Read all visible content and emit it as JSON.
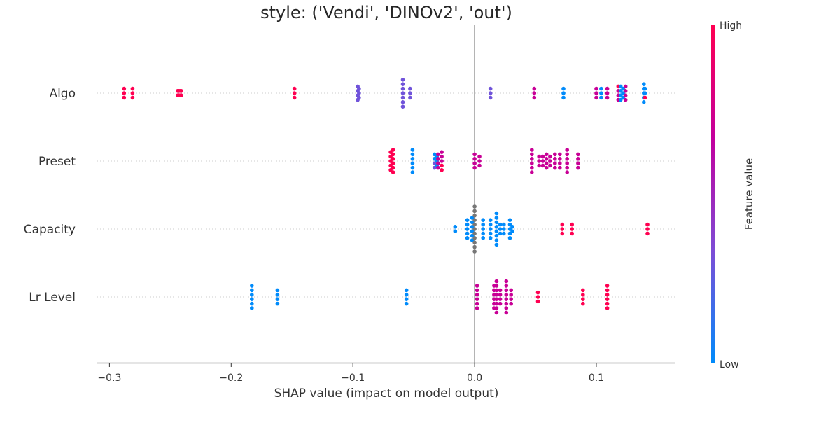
{
  "chart_data": {
    "type": "scatter",
    "subtype": "shap-beeswarm",
    "title": "style: ('Vendi', 'DINOv2', 'out')",
    "xlabel": "SHAP value (impact on model output)",
    "xlim": [
      -0.31,
      0.165
    ],
    "xticks": [
      {
        "value": -0.3,
        "label": "−0.3"
      },
      {
        "value": -0.2,
        "label": "−0.2"
      },
      {
        "value": -0.1,
        "label": "−0.1"
      },
      {
        "value": 0.0,
        "label": "0.0"
      },
      {
        "value": 0.1,
        "label": "0.1"
      }
    ],
    "grid": false,
    "colorbar": {
      "label": "Feature value",
      "high_label": "High",
      "low_label": "Low",
      "colors": [
        "#008bfb",
        "#7d4dd6",
        "#c2009e",
        "#ff0051"
      ],
      "missing_color": "#777777"
    },
    "features": [
      {
        "name": "Algo",
        "points": [
          [
            -0.288,
            1.0
          ],
          [
            -0.288,
            1.0
          ],
          [
            -0.288,
            1.0
          ],
          [
            -0.281,
            1.0
          ],
          [
            -0.281,
            1.0
          ],
          [
            -0.281,
            1.0
          ],
          [
            -0.244,
            1.0
          ],
          [
            -0.244,
            1.0
          ],
          [
            -0.243,
            1.0
          ],
          [
            -0.243,
            1.0
          ],
          [
            -0.242,
            1.0
          ],
          [
            -0.242,
            1.0
          ],
          [
            -0.241,
            1.0
          ],
          [
            -0.241,
            1.0
          ],
          [
            -0.148,
            1.0
          ],
          [
            -0.148,
            1.0
          ],
          [
            -0.148,
            1.0
          ],
          [
            -0.096,
            0.3
          ],
          [
            -0.096,
            0.3
          ],
          [
            -0.095,
            0.3
          ],
          [
            -0.095,
            0.3
          ],
          [
            -0.095,
            0.3
          ],
          [
            -0.096,
            0.3
          ],
          [
            -0.096,
            0.3
          ],
          [
            -0.059,
            0.3
          ],
          [
            -0.059,
            0.3
          ],
          [
            -0.059,
            0.3
          ],
          [
            -0.059,
            0.3
          ],
          [
            -0.059,
            0.3
          ],
          [
            -0.059,
            0.3
          ],
          [
            -0.059,
            0.3
          ],
          [
            -0.053,
            0.3
          ],
          [
            -0.053,
            0.3
          ],
          [
            -0.053,
            0.3
          ],
          [
            0.013,
            0.3
          ],
          [
            0.013,
            0.3
          ],
          [
            0.013,
            0.3
          ],
          [
            0.049,
            0.7
          ],
          [
            0.049,
            0.7
          ],
          [
            0.049,
            0.7
          ],
          [
            0.073,
            0.0
          ],
          [
            0.073,
            0.0
          ],
          [
            0.073,
            0.0
          ],
          [
            0.1,
            0.7
          ],
          [
            0.1,
            0.7
          ],
          [
            0.1,
            0.7
          ],
          [
            0.104,
            0.0
          ],
          [
            0.104,
            0.0
          ],
          [
            0.104,
            0.0
          ],
          [
            0.109,
            0.7
          ],
          [
            0.109,
            0.7
          ],
          [
            0.109,
            0.7
          ],
          [
            0.118,
            1.0
          ],
          [
            0.118,
            0.7
          ],
          [
            0.118,
            0.7
          ],
          [
            0.118,
            0.7
          ],
          [
            0.12,
            0.0
          ],
          [
            0.12,
            0.0
          ],
          [
            0.12,
            0.0
          ],
          [
            0.12,
            0.0
          ],
          [
            0.122,
            0.0
          ],
          [
            0.122,
            0.0
          ],
          [
            0.122,
            0.0
          ],
          [
            0.124,
            0.7
          ],
          [
            0.124,
            0.7
          ],
          [
            0.124,
            0.7
          ],
          [
            0.124,
            0.7
          ],
          [
            0.139,
            0.0
          ],
          [
            0.139,
            0.0
          ],
          [
            0.139,
            0.0
          ],
          [
            0.139,
            0.0
          ],
          [
            0.139,
            0.0
          ],
          [
            0.14,
            0.0
          ],
          [
            0.14,
            0.0
          ],
          [
            0.14,
            1.0
          ]
        ]
      },
      {
        "name": "Preset",
        "points": [
          [
            -0.069,
            1.0
          ],
          [
            -0.069,
            1.0
          ],
          [
            -0.069,
            1.0
          ],
          [
            -0.069,
            1.0
          ],
          [
            -0.069,
            1.0
          ],
          [
            -0.067,
            1.0
          ],
          [
            -0.067,
            1.0
          ],
          [
            -0.067,
            1.0
          ],
          [
            -0.067,
            1.0
          ],
          [
            -0.067,
            1.0
          ],
          [
            -0.067,
            1.0
          ],
          [
            -0.051,
            0.0
          ],
          [
            -0.051,
            0.0
          ],
          [
            -0.051,
            0.0
          ],
          [
            -0.051,
            0.0
          ],
          [
            -0.051,
            0.0
          ],
          [
            -0.051,
            0.0
          ],
          [
            -0.033,
            0.0
          ],
          [
            -0.033,
            0.0
          ],
          [
            -0.033,
            0.3
          ],
          [
            -0.033,
            0.3
          ],
          [
            -0.031,
            0.0
          ],
          [
            -0.031,
            0.0
          ],
          [
            -0.031,
            0.0
          ],
          [
            -0.03,
            0.7
          ],
          [
            -0.03,
            0.7
          ],
          [
            -0.03,
            0.7
          ],
          [
            -0.03,
            0.7
          ],
          [
            -0.027,
            0.7
          ],
          [
            -0.027,
            0.7
          ],
          [
            -0.027,
            0.7
          ],
          [
            -0.027,
            1.0
          ],
          [
            -0.027,
            1.0
          ],
          [
            0.0,
            0.7
          ],
          [
            0.0,
            0.7
          ],
          [
            0.0,
            0.7
          ],
          [
            0.0,
            0.7
          ],
          [
            0.004,
            0.7
          ],
          [
            0.004,
            0.7
          ],
          [
            0.004,
            0.7
          ],
          [
            0.047,
            0.7
          ],
          [
            0.047,
            0.7
          ],
          [
            0.047,
            0.7
          ],
          [
            0.047,
            0.7
          ],
          [
            0.047,
            0.7
          ],
          [
            0.047,
            0.7
          ],
          [
            0.053,
            0.7
          ],
          [
            0.053,
            0.7
          ],
          [
            0.053,
            0.7
          ],
          [
            0.056,
            0.7
          ],
          [
            0.056,
            0.7
          ],
          [
            0.056,
            0.7
          ],
          [
            0.059,
            0.7
          ],
          [
            0.059,
            0.7
          ],
          [
            0.059,
            0.7
          ],
          [
            0.059,
            0.7
          ],
          [
            0.062,
            0.7
          ],
          [
            0.062,
            0.7
          ],
          [
            0.062,
            0.7
          ],
          [
            0.066,
            0.7
          ],
          [
            0.066,
            0.7
          ],
          [
            0.066,
            0.7
          ],
          [
            0.066,
            0.7
          ],
          [
            0.07,
            0.7
          ],
          [
            0.07,
            0.7
          ],
          [
            0.07,
            0.7
          ],
          [
            0.07,
            0.7
          ],
          [
            0.076,
            0.7
          ],
          [
            0.076,
            0.7
          ],
          [
            0.076,
            0.7
          ],
          [
            0.076,
            0.7
          ],
          [
            0.076,
            0.7
          ],
          [
            0.076,
            0.7
          ],
          [
            0.085,
            0.7
          ],
          [
            0.085,
            0.7
          ],
          [
            0.085,
            0.7
          ],
          [
            0.085,
            0.7
          ]
        ]
      },
      {
        "name": "Capacity",
        "points": [
          [
            -0.016,
            0.0
          ],
          [
            -0.016,
            0.0
          ],
          [
            -0.006,
            0.0
          ],
          [
            -0.006,
            0.0
          ],
          [
            -0.006,
            0.0
          ],
          [
            -0.006,
            0.0
          ],
          [
            -0.006,
            0.0
          ],
          [
            -0.002,
            0.0
          ],
          [
            -0.002,
            0.0
          ],
          [
            -0.002,
            0.0
          ],
          [
            -0.002,
            0.0
          ],
          [
            -0.002,
            0.0
          ],
          [
            -0.002,
            0.0
          ],
          [
            0.0,
            null
          ],
          [
            0.0,
            null
          ],
          [
            0.0,
            null
          ],
          [
            0.0,
            null
          ],
          [
            0.0,
            null
          ],
          [
            0.0,
            null
          ],
          [
            0.0,
            null
          ],
          [
            0.0,
            null
          ],
          [
            0.0,
            null
          ],
          [
            0.0,
            null
          ],
          [
            0.0,
            null
          ],
          [
            0.007,
            0.0
          ],
          [
            0.007,
            0.0
          ],
          [
            0.007,
            0.0
          ],
          [
            0.007,
            0.0
          ],
          [
            0.007,
            0.0
          ],
          [
            0.013,
            0.0
          ],
          [
            0.013,
            0.0
          ],
          [
            0.013,
            0.0
          ],
          [
            0.013,
            0.0
          ],
          [
            0.013,
            0.0
          ],
          [
            0.018,
            0.0
          ],
          [
            0.018,
            0.0
          ],
          [
            0.018,
            0.0
          ],
          [
            0.018,
            0.0
          ],
          [
            0.018,
            0.0
          ],
          [
            0.018,
            0.0
          ],
          [
            0.018,
            0.0
          ],
          [
            0.018,
            0.0
          ],
          [
            0.021,
            0.0
          ],
          [
            0.021,
            0.0
          ],
          [
            0.021,
            0.0
          ],
          [
            0.024,
            0.0
          ],
          [
            0.024,
            0.0
          ],
          [
            0.024,
            0.0
          ],
          [
            0.029,
            0.0
          ],
          [
            0.029,
            0.0
          ],
          [
            0.029,
            0.0
          ],
          [
            0.029,
            0.0
          ],
          [
            0.029,
            0.0
          ],
          [
            0.031,
            0.0
          ],
          [
            0.031,
            0.0
          ],
          [
            0.072,
            1.0
          ],
          [
            0.072,
            1.0
          ],
          [
            0.072,
            1.0
          ],
          [
            0.08,
            1.0
          ],
          [
            0.08,
            1.0
          ],
          [
            0.08,
            1.0
          ],
          [
            0.142,
            1.0
          ],
          [
            0.142,
            1.0
          ],
          [
            0.142,
            1.0
          ]
        ]
      },
      {
        "name": "Lr Level",
        "points": [
          [
            -0.183,
            0.0
          ],
          [
            -0.183,
            0.0
          ],
          [
            -0.183,
            0.0
          ],
          [
            -0.183,
            0.0
          ],
          [
            -0.183,
            0.0
          ],
          [
            -0.183,
            0.0
          ],
          [
            -0.162,
            0.0
          ],
          [
            -0.162,
            0.0
          ],
          [
            -0.162,
            0.0
          ],
          [
            -0.162,
            0.0
          ],
          [
            -0.056,
            0.0
          ],
          [
            -0.056,
            0.0
          ],
          [
            -0.056,
            0.0
          ],
          [
            -0.056,
            0.0
          ],
          [
            0.002,
            0.7
          ],
          [
            0.002,
            0.7
          ],
          [
            0.002,
            0.7
          ],
          [
            0.002,
            0.7
          ],
          [
            0.002,
            0.7
          ],
          [
            0.002,
            0.7
          ],
          [
            0.016,
            0.7
          ],
          [
            0.016,
            0.7
          ],
          [
            0.016,
            0.7
          ],
          [
            0.016,
            0.7
          ],
          [
            0.016,
            0.7
          ],
          [
            0.016,
            0.7
          ],
          [
            0.018,
            0.7
          ],
          [
            0.018,
            0.7
          ],
          [
            0.018,
            0.7
          ],
          [
            0.018,
            0.7
          ],
          [
            0.018,
            0.7
          ],
          [
            0.018,
            0.7
          ],
          [
            0.018,
            0.7
          ],
          [
            0.018,
            0.7
          ],
          [
            0.021,
            0.7
          ],
          [
            0.021,
            0.7
          ],
          [
            0.021,
            0.7
          ],
          [
            0.021,
            0.7
          ],
          [
            0.026,
            0.7
          ],
          [
            0.026,
            0.7
          ],
          [
            0.026,
            0.7
          ],
          [
            0.026,
            0.7
          ],
          [
            0.026,
            0.7
          ],
          [
            0.026,
            0.7
          ],
          [
            0.026,
            0.7
          ],
          [
            0.026,
            0.7
          ],
          [
            0.03,
            0.7
          ],
          [
            0.03,
            0.7
          ],
          [
            0.03,
            0.7
          ],
          [
            0.03,
            0.7
          ],
          [
            0.052,
            1.0
          ],
          [
            0.052,
            1.0
          ],
          [
            0.052,
            1.0
          ],
          [
            0.089,
            1.0
          ],
          [
            0.089,
            1.0
          ],
          [
            0.089,
            1.0
          ],
          [
            0.089,
            1.0
          ],
          [
            0.109,
            1.0
          ],
          [
            0.109,
            1.0
          ],
          [
            0.109,
            1.0
          ],
          [
            0.109,
            1.0
          ],
          [
            0.109,
            1.0
          ],
          [
            0.109,
            1.0
          ]
        ]
      }
    ]
  }
}
